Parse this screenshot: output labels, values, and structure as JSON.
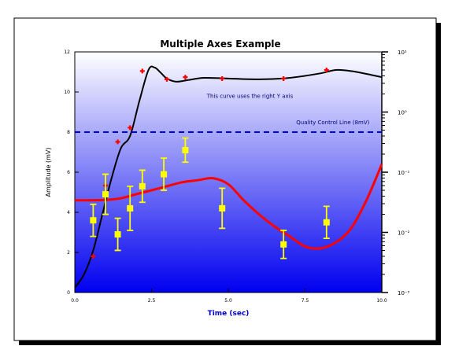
{
  "chart_data": {
    "type": "line",
    "title": "Multiple Axes Example",
    "xlabel": "Time (sec)",
    "ylabel": "Amplitude (mV)",
    "xlim": [
      0,
      10
    ],
    "ylim": [
      0,
      12
    ],
    "x_ticks": [
      0,
      2.5,
      5,
      7.5,
      10
    ],
    "x_tick_labels": [
      "0.0",
      "2.5",
      "5.0",
      "7.5",
      "10.0"
    ],
    "y_ticks": [
      0,
      2,
      4,
      6,
      8,
      10,
      12
    ],
    "y_tick_labels": [
      "0",
      "2",
      "4",
      "6",
      "8",
      "10",
      "12"
    ],
    "y2_scale": "log",
    "y2_ticks": [
      0.001,
      0.01,
      0.1,
      1,
      10
    ],
    "y2_tick_labels": [
      "10⁻³",
      "10⁻²",
      "10⁻¹",
      "10⁰",
      "10¹"
    ],
    "grid": false,
    "background_gradient": [
      "#ffffff",
      "#0000f0"
    ],
    "annotations": [
      {
        "text": "This curve uses the right Y axis",
        "x": 4.3,
        "y": 9.7
      },
      {
        "text": "Quality Control Line (8mV)",
        "x": 9.6,
        "y": 8.4
      }
    ],
    "series": [
      {
        "kind": "line",
        "axis": "left",
        "color": "#ff0000",
        "x": [
          0.0,
          0.5,
          1.0,
          1.5,
          2.0,
          2.5,
          3.0,
          3.5,
          4.0,
          4.5,
          5.0,
          5.5,
          6.0,
          6.5,
          7.0,
          7.5,
          8.0,
          8.5,
          9.0,
          9.5,
          10.0
        ],
        "y": [
          4.6,
          4.6,
          4.62,
          4.7,
          4.9,
          5.1,
          5.3,
          5.5,
          5.6,
          5.7,
          5.4,
          4.6,
          3.9,
          3.3,
          2.8,
          2.3,
          2.2,
          2.5,
          3.2,
          4.6,
          6.4
        ]
      },
      {
        "kind": "line",
        "axis": "right",
        "color": "#000000",
        "x": [
          0.0,
          0.3,
          0.6,
          0.9,
          1.2,
          1.5,
          1.8,
          2.1,
          2.4,
          2.6,
          2.8,
          3.0,
          3.3,
          3.7,
          4.2,
          5.0,
          6.0,
          7.0,
          8.0,
          8.5,
          9.0,
          9.5,
          10.0
        ],
        "y": [
          0.0012,
          0.002,
          0.005,
          0.02,
          0.08,
          0.25,
          0.4,
          1.5,
          5.0,
          5.5,
          4.5,
          3.6,
          3.2,
          3.4,
          3.7,
          3.6,
          3.5,
          3.7,
          4.4,
          5.0,
          4.8,
          4.3,
          3.8
        ]
      },
      {
        "kind": "points",
        "axis": "right",
        "marker": "cross",
        "color": "#ff0000",
        "x": [
          0.6,
          1.0,
          1.4,
          1.8,
          2.2,
          3.0,
          3.6,
          4.8,
          6.8,
          8.2
        ],
        "y": [
          0.004,
          0.06,
          0.32,
          0.55,
          4.8,
          3.5,
          3.8,
          3.6,
          3.6,
          5.0
        ]
      },
      {
        "kind": "errorbar",
        "axis": "left",
        "color": "#ffff00",
        "x": [
          0.6,
          1.0,
          1.4,
          1.8,
          2.2,
          2.9,
          3.6,
          4.8,
          6.8,
          8.2
        ],
        "y": [
          3.6,
          4.9,
          2.9,
          4.2,
          5.3,
          5.9,
          7.1,
          4.2,
          2.4,
          3.5
        ],
        "err": [
          0.8,
          1.0,
          0.8,
          1.1,
          0.8,
          0.8,
          0.6,
          1.0,
          0.7,
          0.8
        ]
      },
      {
        "kind": "hline",
        "axis": "left",
        "color": "#0000d8",
        "y": 8
      }
    ]
  }
}
